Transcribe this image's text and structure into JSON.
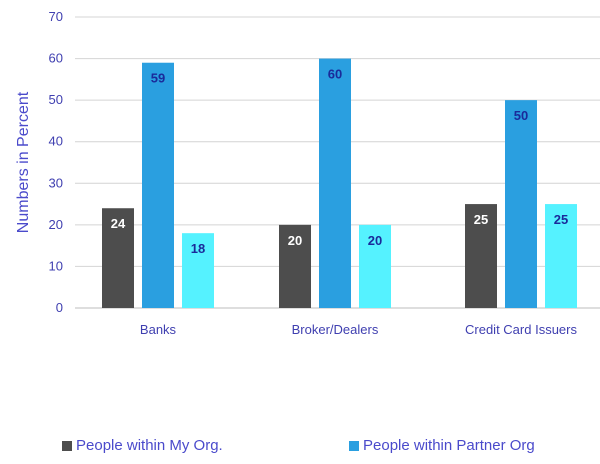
{
  "chart_data": {
    "type": "bar",
    "title": "",
    "xlabel": "",
    "ylabel": "Numbers in Percent",
    "ylim": [
      0,
      70
    ],
    "yticks": [
      0,
      10,
      20,
      30,
      40,
      50,
      60,
      70
    ],
    "categories": [
      "Banks",
      "Broker/Dealers",
      "Credit Card Issuers"
    ],
    "series": [
      {
        "name": "People within My Org.",
        "color": "#4d4d4d",
        "label_color": "#ffffff",
        "values": [
          24,
          20,
          25
        ]
      },
      {
        "name": "People within Partner Org",
        "color": "#2a9fe0",
        "label_color": "#1a2a9a",
        "values": [
          59,
          60,
          50
        ]
      },
      {
        "name": "",
        "color": "#55f2ff",
        "label_color": "#1a2a9a",
        "values": [
          18,
          20,
          25
        ]
      }
    ],
    "grid": true,
    "legend_position": "bottom"
  }
}
